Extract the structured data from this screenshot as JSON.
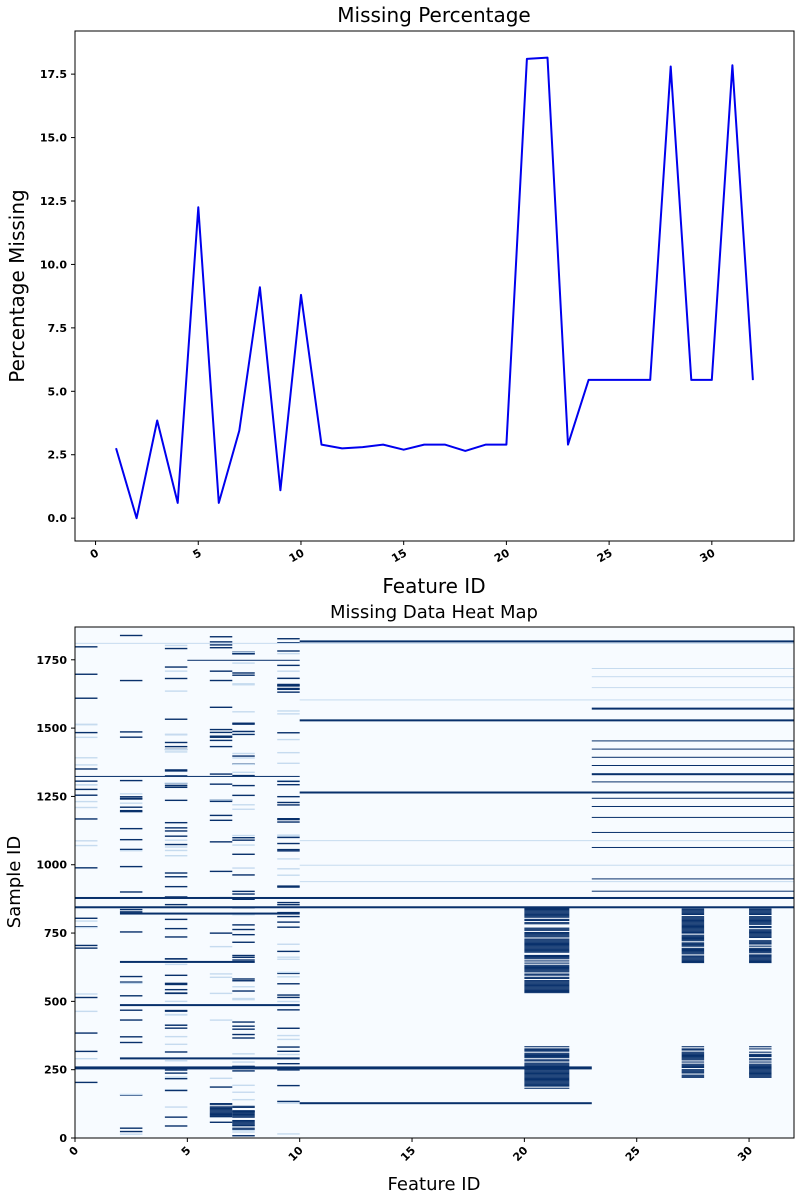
{
  "chart_data": [
    {
      "type": "line",
      "title": "Missing Percentage",
      "xlabel": "Feature ID",
      "ylabel": "Percentage Missing",
      "xlim": [
        -1,
        34
      ],
      "ylim": [
        -0.9,
        19.2
      ],
      "xticks": [
        0,
        5,
        10,
        15,
        20,
        25,
        30
      ],
      "yticks": [
        0.0,
        2.5,
        5.0,
        7.5,
        10.0,
        12.5,
        15.0,
        17.5
      ],
      "ytick_labels": [
        "0.0",
        "2.5",
        "5.0",
        "7.5",
        "10.0",
        "12.5",
        "15.0",
        "17.5"
      ],
      "grid": false,
      "color": "#0000ee",
      "x": [
        1,
        2,
        3,
        4,
        5,
        6,
        7,
        8,
        9,
        10,
        11,
        12,
        13,
        14,
        15,
        16,
        17,
        18,
        19,
        20,
        21,
        22,
        23,
        24,
        25,
        26,
        27,
        28,
        29,
        30,
        31,
        32
      ],
      "y": [
        2.75,
        0.0,
        3.85,
        0.6,
        12.25,
        0.6,
        3.45,
        9.1,
        1.1,
        8.8,
        2.9,
        2.75,
        2.8,
        2.9,
        2.7,
        2.9,
        2.9,
        2.65,
        2.9,
        2.9,
        18.1,
        18.15,
        2.9,
        5.45,
        5.45,
        5.45,
        5.45,
        17.8,
        5.45,
        5.45,
        17.85,
        5.45
      ]
    },
    {
      "type": "heatmap",
      "title": "Missing Data Heat Map",
      "xlabel": "Feature ID",
      "ylabel": "Sample ID",
      "xlim": [
        0,
        32
      ],
      "ylim": [
        0,
        1870
      ],
      "xticks": [
        0,
        5,
        10,
        15,
        20,
        25,
        30
      ],
      "yticks": [
        0,
        250,
        500,
        750,
        1000,
        1250,
        1500,
        1750
      ],
      "grid": false,
      "colormap": {
        "background": "#f7fbff",
        "missing": "#08306b",
        "faint": "#c6dbef"
      },
      "full_row_bands": [
        {
          "from_col": 0,
          "to_col": 32,
          "sample": 848,
          "width": 2,
          "tone": "missing"
        },
        {
          "from_col": 0,
          "to_col": 32,
          "sample": 882,
          "width": 2,
          "tone": "missing"
        },
        {
          "from_col": 0,
          "to_col": 32,
          "sample": 1812,
          "width": 1,
          "tone": "faint"
        },
        {
          "from_col": 10,
          "to_col": 32,
          "sample": 1821,
          "width": 2,
          "tone": "missing"
        },
        {
          "from_col": 10,
          "to_col": 32,
          "sample": 1532,
          "width": 2,
          "tone": "missing"
        },
        {
          "from_col": 10,
          "to_col": 32,
          "sample": 1268,
          "width": 2,
          "tone": "missing"
        },
        {
          "from_col": 10,
          "to_col": 32,
          "sample": 1090,
          "width": 1,
          "tone": "faint"
        },
        {
          "from_col": 10,
          "to_col": 32,
          "sample": 1605,
          "width": 1,
          "tone": "faint"
        },
        {
          "from_col": 10,
          "to_col": 32,
          "sample": 1000,
          "width": 1,
          "tone": "faint"
        },
        {
          "from_col": 10,
          "to_col": 32,
          "sample": 940,
          "width": 1,
          "tone": "faint"
        },
        {
          "from_col": 0,
          "to_col": 23,
          "sample": 262,
          "width": 3,
          "tone": "missing"
        },
        {
          "from_col": 10,
          "to_col": 23,
          "sample": 131,
          "width": 2,
          "tone": "missing"
        },
        {
          "from_col": 2,
          "to_col": 10,
          "sample": 825,
          "width": 2,
          "tone": "missing"
        },
        {
          "from_col": 2,
          "to_col": 8,
          "sample": 648,
          "width": 2,
          "tone": "missing"
        },
        {
          "from_col": 2,
          "to_col": 10,
          "sample": 490,
          "width": 2,
          "tone": "missing"
        },
        {
          "from_col": 2,
          "to_col": 10,
          "sample": 295,
          "width": 2,
          "tone": "missing"
        },
        {
          "from_col": 0,
          "to_col": 10,
          "sample": 1325,
          "width": 1,
          "tone": "missing"
        },
        {
          "from_col": 5,
          "to_col": 10,
          "sample": 1750,
          "width": 1,
          "tone": "missing"
        },
        {
          "from_col": 23,
          "to_col": 32,
          "sample": 1575,
          "width": 2,
          "tone": "missing"
        },
        {
          "from_col": 23,
          "to_col": 32,
          "sample": 1455,
          "width": 1,
          "tone": "missing"
        },
        {
          "from_col": 23,
          "to_col": 32,
          "sample": 1425,
          "width": 1,
          "tone": "missing"
        },
        {
          "from_col": 23,
          "to_col": 32,
          "sample": 1395,
          "width": 1,
          "tone": "missing"
        },
        {
          "from_col": 23,
          "to_col": 32,
          "sample": 1365,
          "width": 1,
          "tone": "missing"
        },
        {
          "from_col": 23,
          "to_col": 32,
          "sample": 1335,
          "width": 2,
          "tone": "missing"
        },
        {
          "from_col": 23,
          "to_col": 32,
          "sample": 1305,
          "width": 1,
          "tone": "missing"
        },
        {
          "from_col": 23,
          "to_col": 32,
          "sample": 1245,
          "width": 1,
          "tone": "missing"
        },
        {
          "from_col": 23,
          "to_col": 32,
          "sample": 1215,
          "width": 1,
          "tone": "missing"
        },
        {
          "from_col": 23,
          "to_col": 32,
          "sample": 1175,
          "width": 1,
          "tone": "missing"
        },
        {
          "from_col": 23,
          "to_col": 32,
          "sample": 1120,
          "width": 1,
          "tone": "missing"
        },
        {
          "from_col": 23,
          "to_col": 32,
          "sample": 1065,
          "width": 1,
          "tone": "missing"
        },
        {
          "from_col": 23,
          "to_col": 32,
          "sample": 950,
          "width": 1,
          "tone": "missing"
        },
        {
          "from_col": 23,
          "to_col": 32,
          "sample": 905,
          "width": 1,
          "tone": "missing"
        },
        {
          "from_col": 23,
          "to_col": 32,
          "sample": 1690,
          "width": 1,
          "tone": "faint"
        },
        {
          "from_col": 23,
          "to_col": 32,
          "sample": 1720,
          "width": 1,
          "tone": "faint"
        },
        {
          "from_col": 23,
          "to_col": 32,
          "sample": 1650,
          "width": 1,
          "tone": "faint"
        }
      ],
      "column_blocks": [
        {
          "from_col": 20,
          "to_col": 22,
          "sample_ranges": [
            [
              530,
              840
            ],
            [
              180,
              335
            ]
          ]
        },
        {
          "from_col": 27,
          "to_col": 28,
          "sample_ranges": [
            [
              640,
              840
            ],
            [
              220,
              335
            ]
          ]
        },
        {
          "from_col": 30,
          "to_col": 31,
          "sample_ranges": [
            [
              640,
              840
            ],
            [
              220,
              335
            ]
          ]
        },
        {
          "from_col": 6,
          "to_col": 7,
          "sample_ranges": [
            [
              80,
              125
            ]
          ]
        },
        {
          "from_col": 7,
          "to_col": 8,
          "sample_ranges": [
            [
              30,
              125
            ]
          ]
        }
      ],
      "sparse_columns": [
        0,
        2,
        4,
        6,
        7,
        9
      ]
    }
  ]
}
